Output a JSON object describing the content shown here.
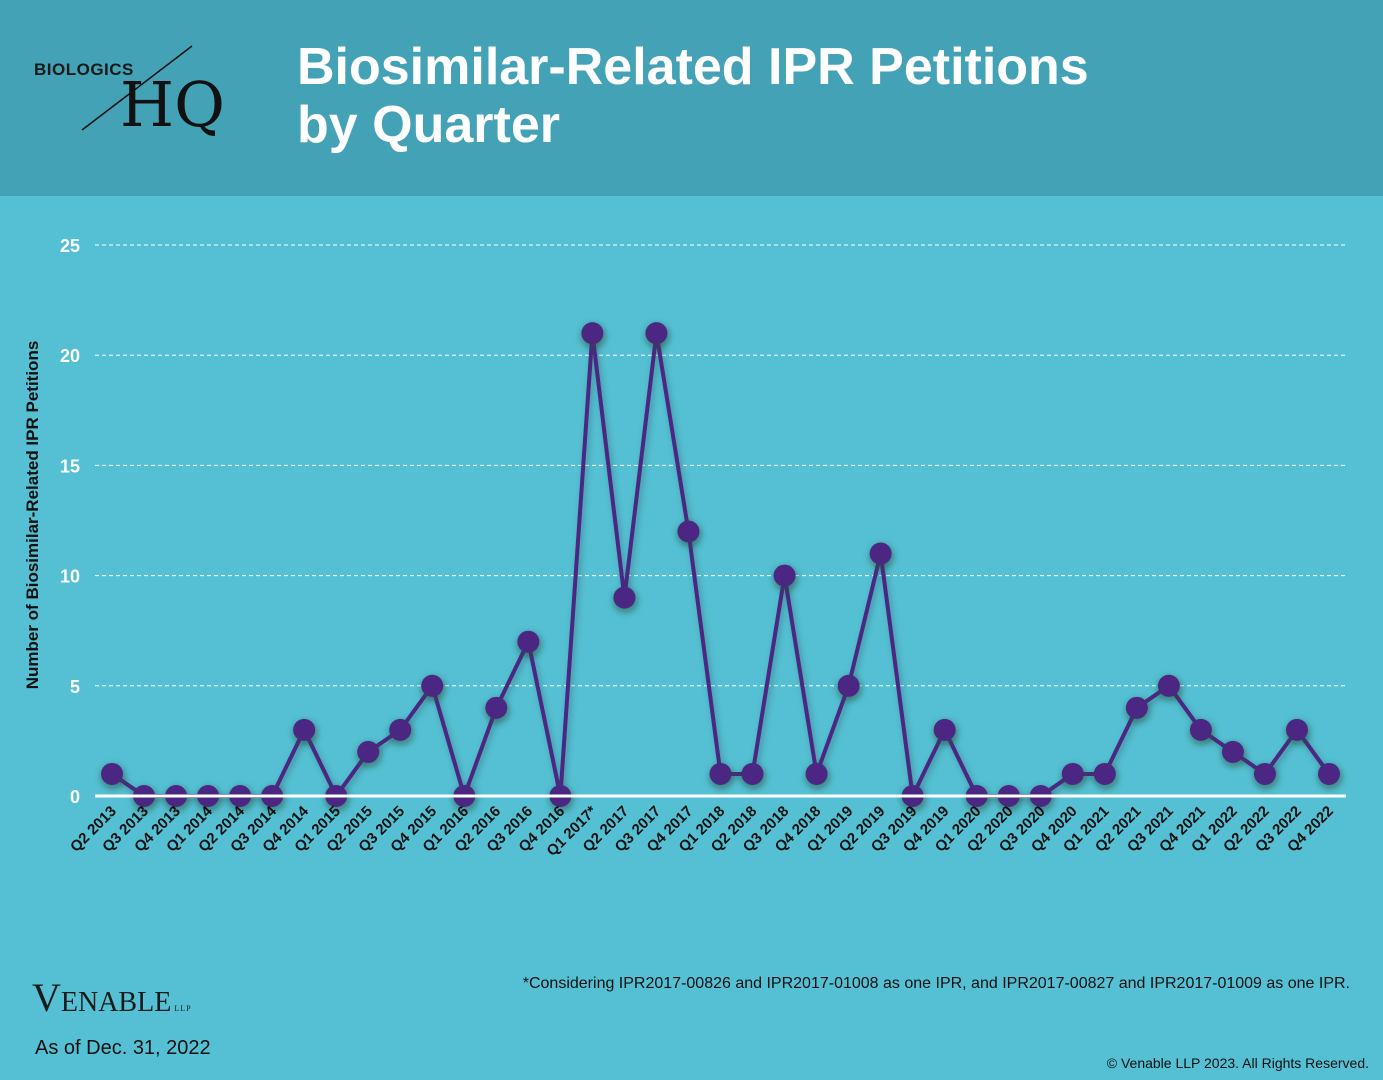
{
  "header": {
    "logo_top": "BIOLOGICS",
    "logo_main": "HQ",
    "title_line1": "Biosimilar-Related IPR Petitions",
    "title_line2": "by Quarter"
  },
  "colors": {
    "background": "#55c0d3",
    "header": "#43a2b5",
    "line": "#4b2783",
    "grid": "#ffffff"
  },
  "chart_data": {
    "type": "line",
    "title": "Biosimilar-Related IPR Petitions by Quarter",
    "xlabel": "",
    "ylabel": "Number of Biosimilar-Related IPR Petitions",
    "ylim": [
      0,
      25
    ],
    "yticks": [
      0,
      5,
      10,
      15,
      20,
      25
    ],
    "grid": true,
    "categories": [
      "Q2 2013",
      "Q3 2013",
      "Q4 2013",
      "Q1 2014",
      "Q2 2014",
      "Q3 2014",
      "Q4 2014",
      "Q1 2015",
      "Q2 2015",
      "Q3 2015",
      "Q4 2015",
      "Q1 2016",
      "Q2 2016",
      "Q3 2016",
      "Q4 2016",
      "Q1 2017*",
      "Q2 2017",
      "Q3 2017",
      "Q4 2017",
      "Q1 2018",
      "Q2 2018",
      "Q3 2018",
      "Q4 2018",
      "Q1 2019",
      "Q2 2019",
      "Q3 2019",
      "Q4 2019",
      "Q1 2020",
      "Q2 2020",
      "Q3 2020",
      "Q4 2020",
      "Q1 2021",
      "Q2 2021",
      "Q3 2021",
      "Q4 2021",
      "Q1 2022",
      "Q2 2022",
      "Q3 2022",
      "Q4 2022"
    ],
    "values": [
      1,
      0,
      0,
      0,
      0,
      0,
      3,
      0,
      2,
      3,
      5,
      0,
      4,
      7,
      0,
      21,
      9,
      21,
      12,
      1,
      1,
      10,
      1,
      5,
      11,
      0,
      3,
      0,
      0,
      0,
      1,
      1,
      4,
      5,
      3,
      2,
      1,
      3,
      1
    ]
  },
  "footer": {
    "footnote": "*Considering IPR2017-00826 and IPR2017-01008 as one IPR, and IPR2017-00827 and IPR2017-01009 as one IPR.",
    "venable_v": "V",
    "venable_rest": "ENABLE",
    "venable_llp": "LLP",
    "as_of": "As of Dec. 31, 2022",
    "copyright": "© Venable LLP 2023. All Rights Reserved."
  }
}
